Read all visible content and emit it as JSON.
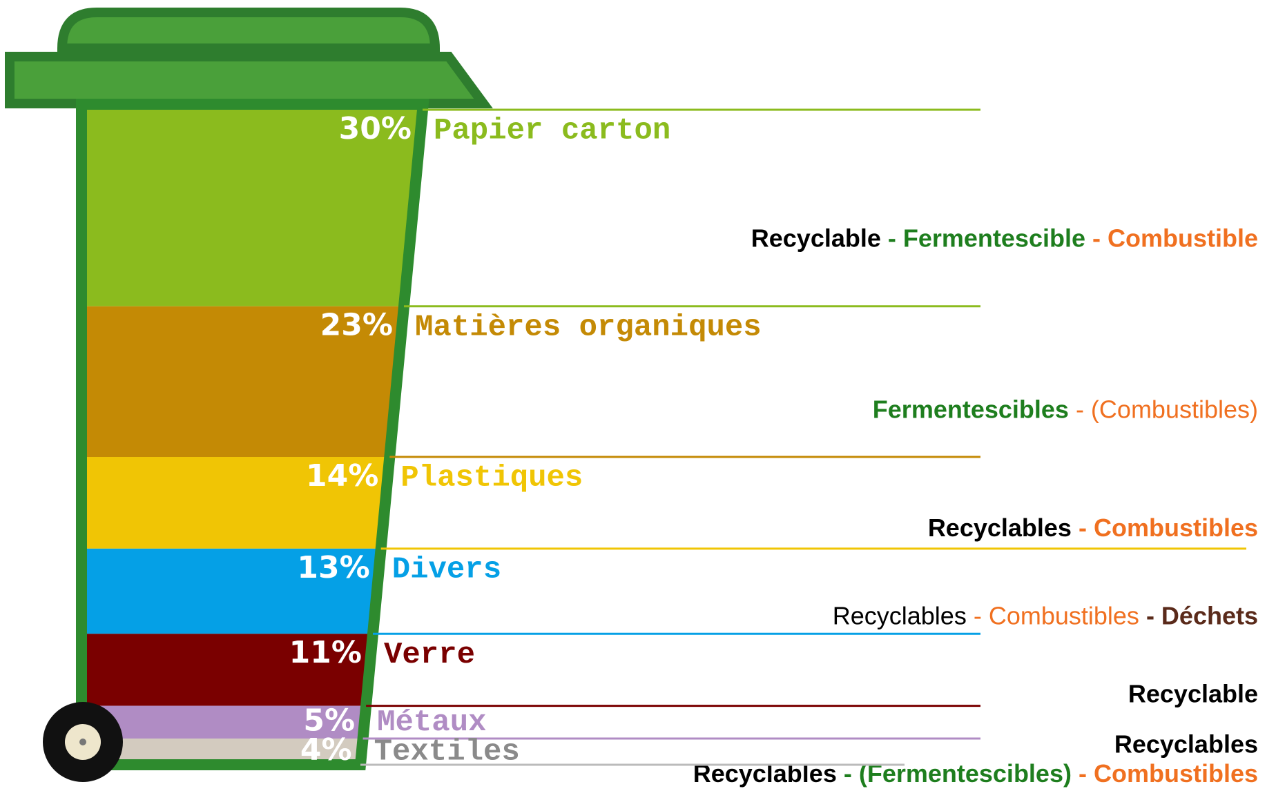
{
  "chart_data": {
    "type": "stacked-bin",
    "categories": [
      "Papier carton",
      "Matières organiques",
      "Plastiques",
      "Divers",
      "Verre",
      "Métaux",
      "Textiles"
    ],
    "values": [
      30,
      23,
      14,
      13,
      11,
      5,
      4
    ],
    "value_labels": [
      "30%",
      "23%",
      "14%",
      "13%",
      "11%",
      "5%",
      "4%"
    ],
    "colors": [
      "#8bbb1e",
      "#c48a05",
      "#f0c505",
      "#05a0e6",
      "#7a0000",
      "#b08cc4",
      "#d3cbbf"
    ],
    "label_colors": [
      "#8bbb1e",
      "#c48a05",
      "#f0c505",
      "#05a0e6",
      "#7a0000",
      "#b08cc4",
      "#8a8a8a"
    ],
    "notes": [
      [
        {
          "text": "Recyclable",
          "color": "#000000",
          "bold": true
        },
        {
          "text": " - Fermentescible",
          "color": "#1e7e1e",
          "bold": true
        },
        {
          "text": " - Combustible",
          "color": "#f07020",
          "bold": true
        }
      ],
      [
        {
          "text": "Fermentescibles",
          "color": "#1e7e1e",
          "bold": true
        },
        {
          "text": " - (Combustibles)",
          "color": "#f07020",
          "bold": false
        }
      ],
      [
        {
          "text": "Recyclables",
          "color": "#000000",
          "bold": true
        },
        {
          "text": " - Combustibles",
          "color": "#f07020",
          "bold": true
        }
      ],
      [
        {
          "text": "Recyclables",
          "color": "#000000",
          "bold": false
        },
        {
          "text": " - Combustibles",
          "color": "#f07020",
          "bold": false
        },
        {
          "text": " - Déchets",
          "color": "#5a2a1a",
          "bold": true
        }
      ],
      [
        {
          "text": "Recyclable",
          "color": "#000000",
          "bold": true
        }
      ],
      [
        {
          "text": "Recyclables",
          "color": "#000000",
          "bold": true
        }
      ],
      [
        {
          "text": "Recyclables",
          "color": "#000000",
          "bold": true
        },
        {
          "text": " - (Fermentescibles)",
          "color": "#1e7e1e",
          "bold": true
        },
        {
          "text": " - Combustibles",
          "color": "#f07020",
          "bold": true
        }
      ]
    ]
  }
}
